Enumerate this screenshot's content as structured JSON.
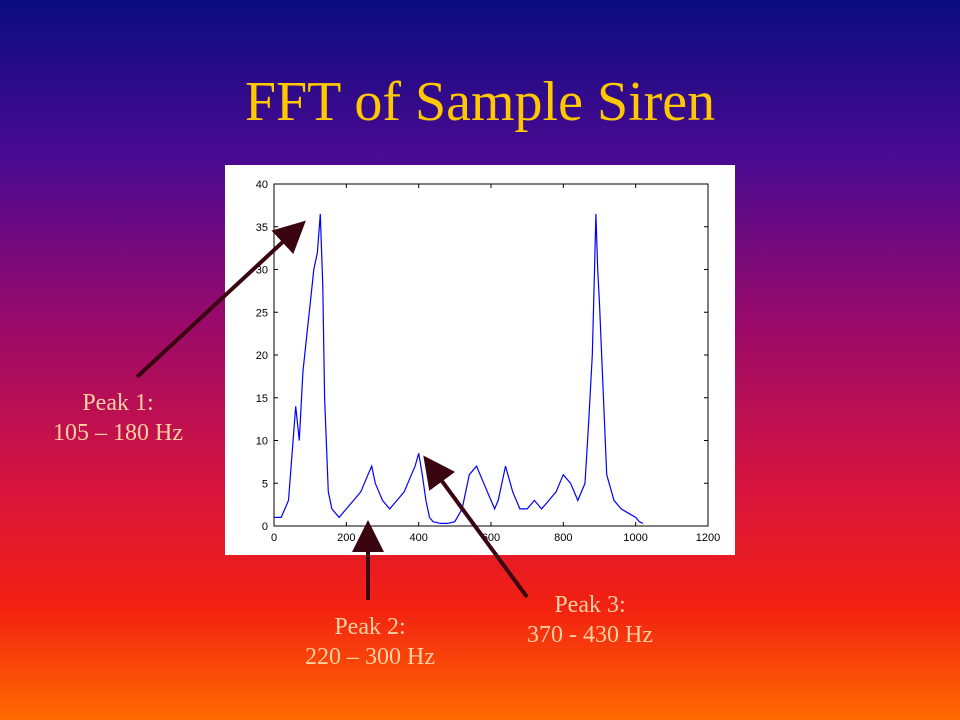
{
  "slide": {
    "title": "FFT of Sample Siren",
    "callouts": [
      {
        "line1": "Peak 1:",
        "line2": "105 – 180 Hz"
      },
      {
        "line1": "Peak 2:",
        "line2": "220 – 300 Hz"
      },
      {
        "line1": "Peak 3:",
        "line2": "370 - 430 Hz"
      }
    ]
  },
  "colors": {
    "title": "#ffc800",
    "callout_text": "#ffd0a0",
    "series": "#0000ff",
    "arrow": "#3a0410"
  },
  "chart_data": {
    "type": "line",
    "title": "",
    "xlabel": "",
    "ylabel": "",
    "xlim": [
      0,
      1200
    ],
    "ylim": [
      0,
      40
    ],
    "xticks": [
      0,
      200,
      400,
      600,
      800,
      1000,
      1200
    ],
    "yticks": [
      0,
      5,
      10,
      15,
      20,
      25,
      30,
      35,
      40
    ],
    "grid": false,
    "series": [
      {
        "x": [
          0,
          20,
          40,
          60,
          70,
          80,
          90,
          100,
          110,
          120,
          128,
          135,
          140,
          150,
          160,
          180,
          200,
          220,
          240,
          260,
          270,
          280,
          290,
          300,
          320,
          340,
          360,
          370,
          380,
          390,
          400,
          410,
          420,
          430,
          440,
          460,
          480,
          500,
          520,
          540,
          560,
          580,
          600,
          610,
          620,
          630,
          640,
          660,
          680,
          700,
          720,
          740,
          760,
          780,
          800,
          820,
          840,
          860,
          870,
          880,
          885,
          890,
          895,
          900,
          910,
          920,
          940,
          960,
          980,
          1000,
          1010,
          1020
        ],
        "y": [
          1,
          1,
          3,
          14,
          10,
          18,
          22,
          26,
          30,
          32,
          36.5,
          28,
          15,
          4,
          2,
          1,
          2,
          3,
          4,
          6,
          7,
          5,
          4,
          3,
          2,
          3,
          4,
          5,
          6,
          7,
          8.5,
          6,
          3,
          1,
          0.5,
          0.3,
          0.3,
          0.5,
          2,
          6,
          7,
          5,
          3,
          2,
          3,
          5,
          7,
          4,
          2,
          2,
          3,
          2,
          3,
          4,
          6,
          5,
          3,
          5,
          12,
          20,
          28,
          36.5,
          30,
          26,
          16,
          6,
          3,
          2,
          1.5,
          1,
          0.5,
          0.3
        ]
      }
    ]
  }
}
